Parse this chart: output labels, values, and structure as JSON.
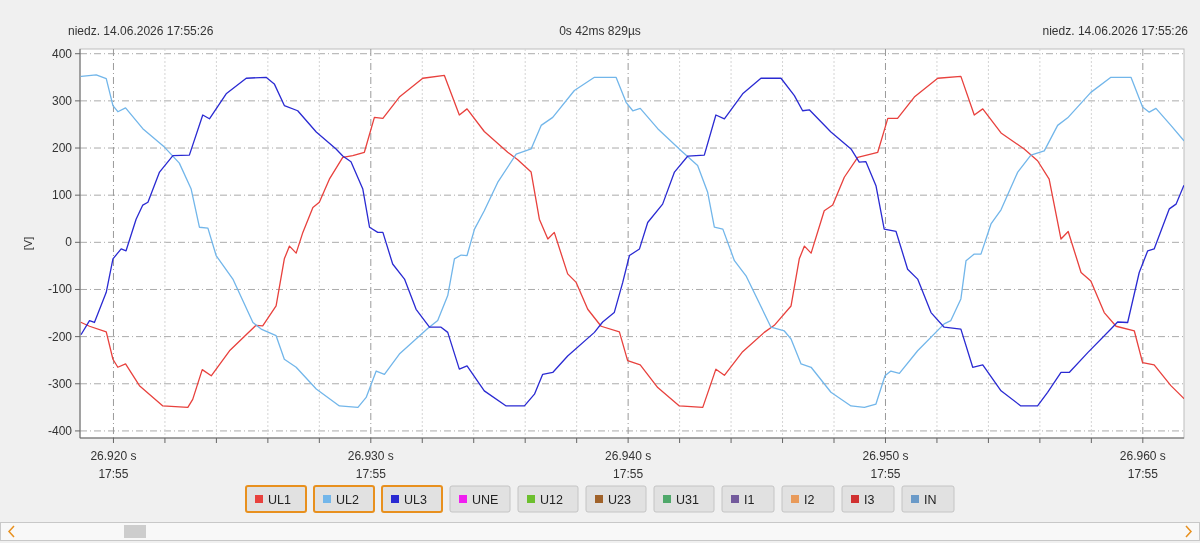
{
  "chart_data": {
    "type": "line",
    "annotations": [
      "niedz. 14.06.2026 17:55:26",
      "0s 42ms 829µs",
      "niedz. 14.06.2026 17:55:26",
      "17:55",
      "17:55",
      "17:55",
      "17:55",
      "17:55"
    ],
    "ylabel": "[V]",
    "xlim": [
      26.9187,
      26.9616
    ],
    "ylim": [
      -415,
      410
    ],
    "xticks": [
      {
        "value": 26.92,
        "label": "26.920 s"
      },
      {
        "value": 26.922,
        "label": null
      },
      {
        "value": 26.924,
        "label": null
      },
      {
        "value": 26.926,
        "label": null
      },
      {
        "value": 26.928,
        "label": null
      },
      {
        "value": 26.93,
        "label": "26.930 s"
      },
      {
        "value": 26.932,
        "label": null
      },
      {
        "value": 26.934,
        "label": null
      },
      {
        "value": 26.936,
        "label": null
      },
      {
        "value": 26.938,
        "label": null
      },
      {
        "value": 26.94,
        "label": "26.940 s"
      },
      {
        "value": 26.942,
        "label": null
      },
      {
        "value": 26.944,
        "label": null
      },
      {
        "value": 26.946,
        "label": null
      },
      {
        "value": 26.948,
        "label": null
      },
      {
        "value": 26.95,
        "label": "26.950 s"
      },
      {
        "value": 26.952,
        "label": null
      },
      {
        "value": 26.954,
        "label": null
      },
      {
        "value": 26.956,
        "label": null
      },
      {
        "value": 26.958,
        "label": null
      },
      {
        "value": 26.96,
        "label": "26.960 s"
      }
    ],
    "yticks": [
      -400,
      -300,
      -200,
      -100,
      0,
      100,
      200,
      300,
      400
    ],
    "grid": true,
    "legend": "bottom",
    "marker": "none",
    "line_style": "solid",
    "series": [
      {
        "name": "UL1",
        "color": "#e8413d",
        "x": [
          26.91875,
          26.91907,
          26.91972,
          26.91998,
          26.92017,
          26.92047,
          26.92101,
          26.92192,
          26.92289,
          26.92308,
          26.92345,
          26.9238,
          26.92451,
          26.92554,
          26.9258,
          26.92632,
          26.92664,
          26.92684,
          26.9271,
          26.92736,
          26.92775,
          26.928,
          26.92839,
          26.92891,
          26.9293,
          26.92975,
          26.93014,
          26.93047,
          26.93111,
          26.93202,
          26.93286,
          26.93344,
          26.93374,
          26.93441,
          26.93532,
          26.93571,
          26.93623,
          26.93655,
          26.93688,
          26.93713,
          26.93765,
          26.93798,
          26.93843,
          26.93895,
          26.93966,
          26.93998,
          26.94047,
          26.94115,
          26.94199,
          26.9429,
          26.94341,
          26.94374,
          26.94445,
          26.94529,
          26.94568,
          26.94633,
          26.94665,
          26.94685,
          26.94711,
          26.94762,
          26.94795,
          26.9484,
          26.94892,
          26.9497,
          26.95009,
          26.95047,
          26.95112,
          26.95203,
          26.95293,
          26.95345,
          26.95378,
          26.95449,
          26.95539,
          26.95591,
          26.95636,
          26.95682,
          26.9571,
          26.9576,
          26.95798,
          26.9585,
          26.95896,
          26.95967,
          26.95999,
          26.96044,
          26.96109,
          26.96159
        ],
        "values": [
          -170,
          -178,
          -190,
          -248,
          -265,
          -258,
          -304,
          -347,
          -350,
          -333,
          -270,
          -283,
          -230,
          -176,
          -177,
          -135,
          -35,
          -8,
          -23,
          21,
          74,
          85,
          134,
          180,
          184,
          191,
          265,
          263,
          308,
          348,
          354,
          270,
          283,
          235,
          191,
          175,
          149,
          49,
          7,
          21,
          -67,
          -85,
          -142,
          -178,
          -190,
          -251,
          -260,
          -308,
          -347,
          -350,
          -269,
          -282,
          -232,
          -191,
          -176,
          -135,
          -35,
          -8,
          -23,
          67,
          79,
          138,
          180,
          191,
          263,
          263,
          308,
          348,
          352,
          270,
          283,
          232,
          198,
          173,
          134,
          7,
          23,
          -64,
          -82,
          -149,
          -178,
          -188,
          -255,
          -260,
          -304,
          -331
        ]
      },
      {
        "name": "UL2",
        "color": "#72b6ea",
        "x": [
          26.91875,
          26.91933,
          26.91972,
          26.91998,
          26.92017,
          26.92047,
          26.92114,
          26.92198,
          26.92256,
          26.92302,
          26.92334,
          26.92367,
          26.92399,
          26.92464,
          26.92542,
          26.92574,
          26.92632,
          26.92664,
          26.9271,
          26.92788,
          26.92878,
          26.9295,
          26.92982,
          26.93021,
          26.93053,
          26.93111,
          26.93221,
          26.9326,
          26.93299,
          26.93325,
          26.93351,
          26.93374,
          26.93403,
          26.93441,
          26.93493,
          26.93565,
          26.93623,
          26.93662,
          26.93707,
          26.93791,
          26.93869,
          26.93953,
          26.93992,
          26.94018,
          26.94047,
          26.94115,
          26.94206,
          26.9427,
          26.94309,
          26.94335,
          26.94368,
          26.94413,
          26.94458,
          26.94555,
          26.94607,
          26.94633,
          26.94672,
          26.94711,
          26.94788,
          26.94866,
          26.94918,
          26.94963,
          26.94998,
          26.95021,
          26.95054,
          26.95125,
          26.95228,
          26.95254,
          26.95293,
          26.95313,
          26.95345,
          26.95371,
          26.9541,
          26.95449,
          26.95514,
          26.95565,
          26.95617,
          26.95669,
          26.95708,
          26.95798,
          26.95876,
          26.95954,
          26.95999,
          26.96025,
          26.96051,
          26.96109,
          26.96159
        ],
        "values": [
          352,
          355,
          347,
          290,
          277,
          285,
          241,
          202,
          168,
          113,
          32,
          30,
          -28,
          -78,
          -170,
          -184,
          -198,
          -248,
          -265,
          -311,
          -347,
          -350,
          -329,
          -273,
          -280,
          -237,
          -183,
          -166,
          -113,
          -35,
          -27,
          -28,
          28,
          67,
          127,
          187,
          198,
          248,
          265,
          322,
          350,
          350,
          297,
          279,
          284,
          241,
          194,
          163,
          106,
          32,
          28,
          -39,
          -71,
          -180,
          -188,
          -205,
          -258,
          -265,
          -318,
          -347,
          -350,
          -343,
          -283,
          -273,
          -278,
          -230,
          -173,
          -166,
          -120,
          -39,
          -25,
          -25,
          39,
          69,
          149,
          185,
          194,
          248,
          264,
          318,
          350,
          350,
          287,
          276,
          284,
          248,
          216
        ]
      },
      {
        "name": "UL3",
        "color": "#2a2ad2",
        "x": [
          26.91875,
          26.91907,
          26.91926,
          26.91972,
          26.91998,
          26.9203,
          26.92049,
          26.92088,
          26.92114,
          26.92134,
          26.92179,
          26.92231,
          26.92295,
          26.92347,
          26.92373,
          26.92438,
          26.92516,
          26.92593,
          26.92625,
          26.92664,
          26.92716,
          26.92788,
          26.92865,
          26.92891,
          26.92923,
          26.92969,
          26.92995,
          26.93027,
          26.93047,
          26.93085,
          26.93131,
          26.93176,
          26.93228,
          26.93273,
          26.93299,
          26.93344,
          26.93374,
          26.93441,
          26.93526,
          26.93597,
          26.93636,
          26.93668,
          26.93707,
          26.93765,
          26.93869,
          26.93901,
          26.93946,
          26.93979,
          26.94005,
          26.94044,
          26.94076,
          26.94134,
          26.9418,
          26.94232,
          26.94296,
          26.94341,
          26.94374,
          26.94445,
          26.94516,
          26.94594,
          26.94646,
          26.94678,
          26.94704,
          26.94788,
          26.94866,
          26.94898,
          26.94924,
          26.94963,
          26.94995,
          26.95041,
          26.95086,
          26.95125,
          26.95177,
          26.95228,
          26.95293,
          26.95339,
          26.95378,
          26.95449,
          26.95526,
          26.95591,
          26.9563,
          26.95682,
          26.95714,
          26.95786,
          26.95876,
          26.95902,
          26.95941,
          26.95986,
          26.96019,
          26.96044,
          26.96103,
          26.96129,
          26.96159
        ],
        "values": [
          -195,
          -166,
          -170,
          -106,
          -35,
          -14,
          -18,
          49,
          79,
          85,
          149,
          184,
          185,
          270,
          262,
          315,
          348,
          350,
          336,
          290,
          279,
          234,
          198,
          183,
          171,
          113,
          32,
          21,
          21,
          -46,
          -78,
          -142,
          -180,
          -180,
          -191,
          -269,
          -262,
          -315,
          -347,
          -347,
          -322,
          -280,
          -276,
          -241,
          -191,
          -169,
          -149,
          -85,
          -28,
          -14,
          42,
          81,
          149,
          183,
          185,
          270,
          262,
          315,
          348,
          348,
          311,
          279,
          281,
          234,
          198,
          170,
          171,
          120,
          28,
          23,
          -57,
          -78,
          -149,
          -180,
          -184,
          -265,
          -260,
          -315,
          -347,
          -347,
          -318,
          -276,
          -276,
          -234,
          -184,
          -169,
          -170,
          -64,
          -18,
          -14,
          71,
          81,
          120
        ]
      },
      {
        "name": "UNE",
        "color": "#f01ef0"
      },
      {
        "name": "U12",
        "color": "#6cbf2e"
      },
      {
        "name": "U23",
        "color": "#a0622a"
      },
      {
        "name": "U31",
        "color": "#4fa86a"
      },
      {
        "name": "I1",
        "color": "#735a9c"
      },
      {
        "name": "I2",
        "color": "#e89a5a"
      },
      {
        "name": "I3",
        "color": "#d03030"
      },
      {
        "name": "IN",
        "color": "#6a9ac8"
      }
    ]
  }
}
